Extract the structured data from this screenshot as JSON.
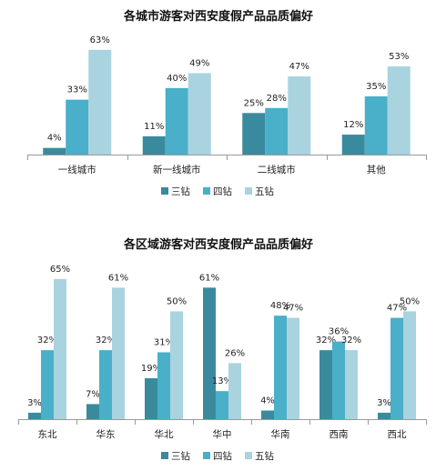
{
  "chart_data": [
    {
      "type": "bar",
      "title": "各城市游客对西安度假产品品质偏好",
      "categories": [
        "一线城市",
        "新一线城市",
        "二线城市",
        "其他"
      ],
      "series": [
        {
          "name": "三钻",
          "values": [
            4,
            11,
            25,
            12
          ],
          "labels": [
            "4%",
            "11%",
            "25%",
            "12%"
          ]
        },
        {
          "name": "四钻",
          "values": [
            33,
            40,
            28,
            35
          ],
          "labels": [
            "33%",
            "40%",
            "28%",
            "35%"
          ]
        },
        {
          "name": "五钻",
          "values": [
            63,
            49,
            47,
            53
          ],
          "labels": [
            "63%",
            "49%",
            "47%",
            "53%"
          ]
        }
      ],
      "ylim": [
        0,
        70
      ],
      "legend": "bottom",
      "grid": false
    },
    {
      "type": "bar",
      "title": "各区域游客对西安度假产品品质偏好",
      "categories": [
        "东北",
        "华东",
        "华北",
        "华中",
        "华南",
        "西南",
        "西北"
      ],
      "series": [
        {
          "name": "三钻",
          "values": [
            3,
            7,
            19,
            61,
            4,
            32,
            3
          ],
          "labels": [
            "3%",
            "7%",
            "19%",
            "61%",
            "4%",
            "32%",
            "3%"
          ]
        },
        {
          "name": "四钻",
          "values": [
            32,
            32,
            31,
            13,
            48,
            36,
            47
          ],
          "labels": [
            "32%",
            "32%",
            "31%",
            "13%",
            "48%",
            "36%",
            "47%"
          ]
        },
        {
          "name": "五钻",
          "values": [
            65,
            61,
            50,
            26,
            47,
            32,
            50
          ],
          "labels": [
            "65%",
            "61%",
            "50%",
            "26%",
            "47%",
            "32%",
            "50%"
          ]
        }
      ],
      "ylim": [
        0,
        70
      ],
      "legend": "bottom",
      "grid": false
    }
  ],
  "colors": {
    "series": [
      "#3a8a9e",
      "#4aafc8",
      "#a9d3df"
    ],
    "axis": "#9a9a9a"
  }
}
